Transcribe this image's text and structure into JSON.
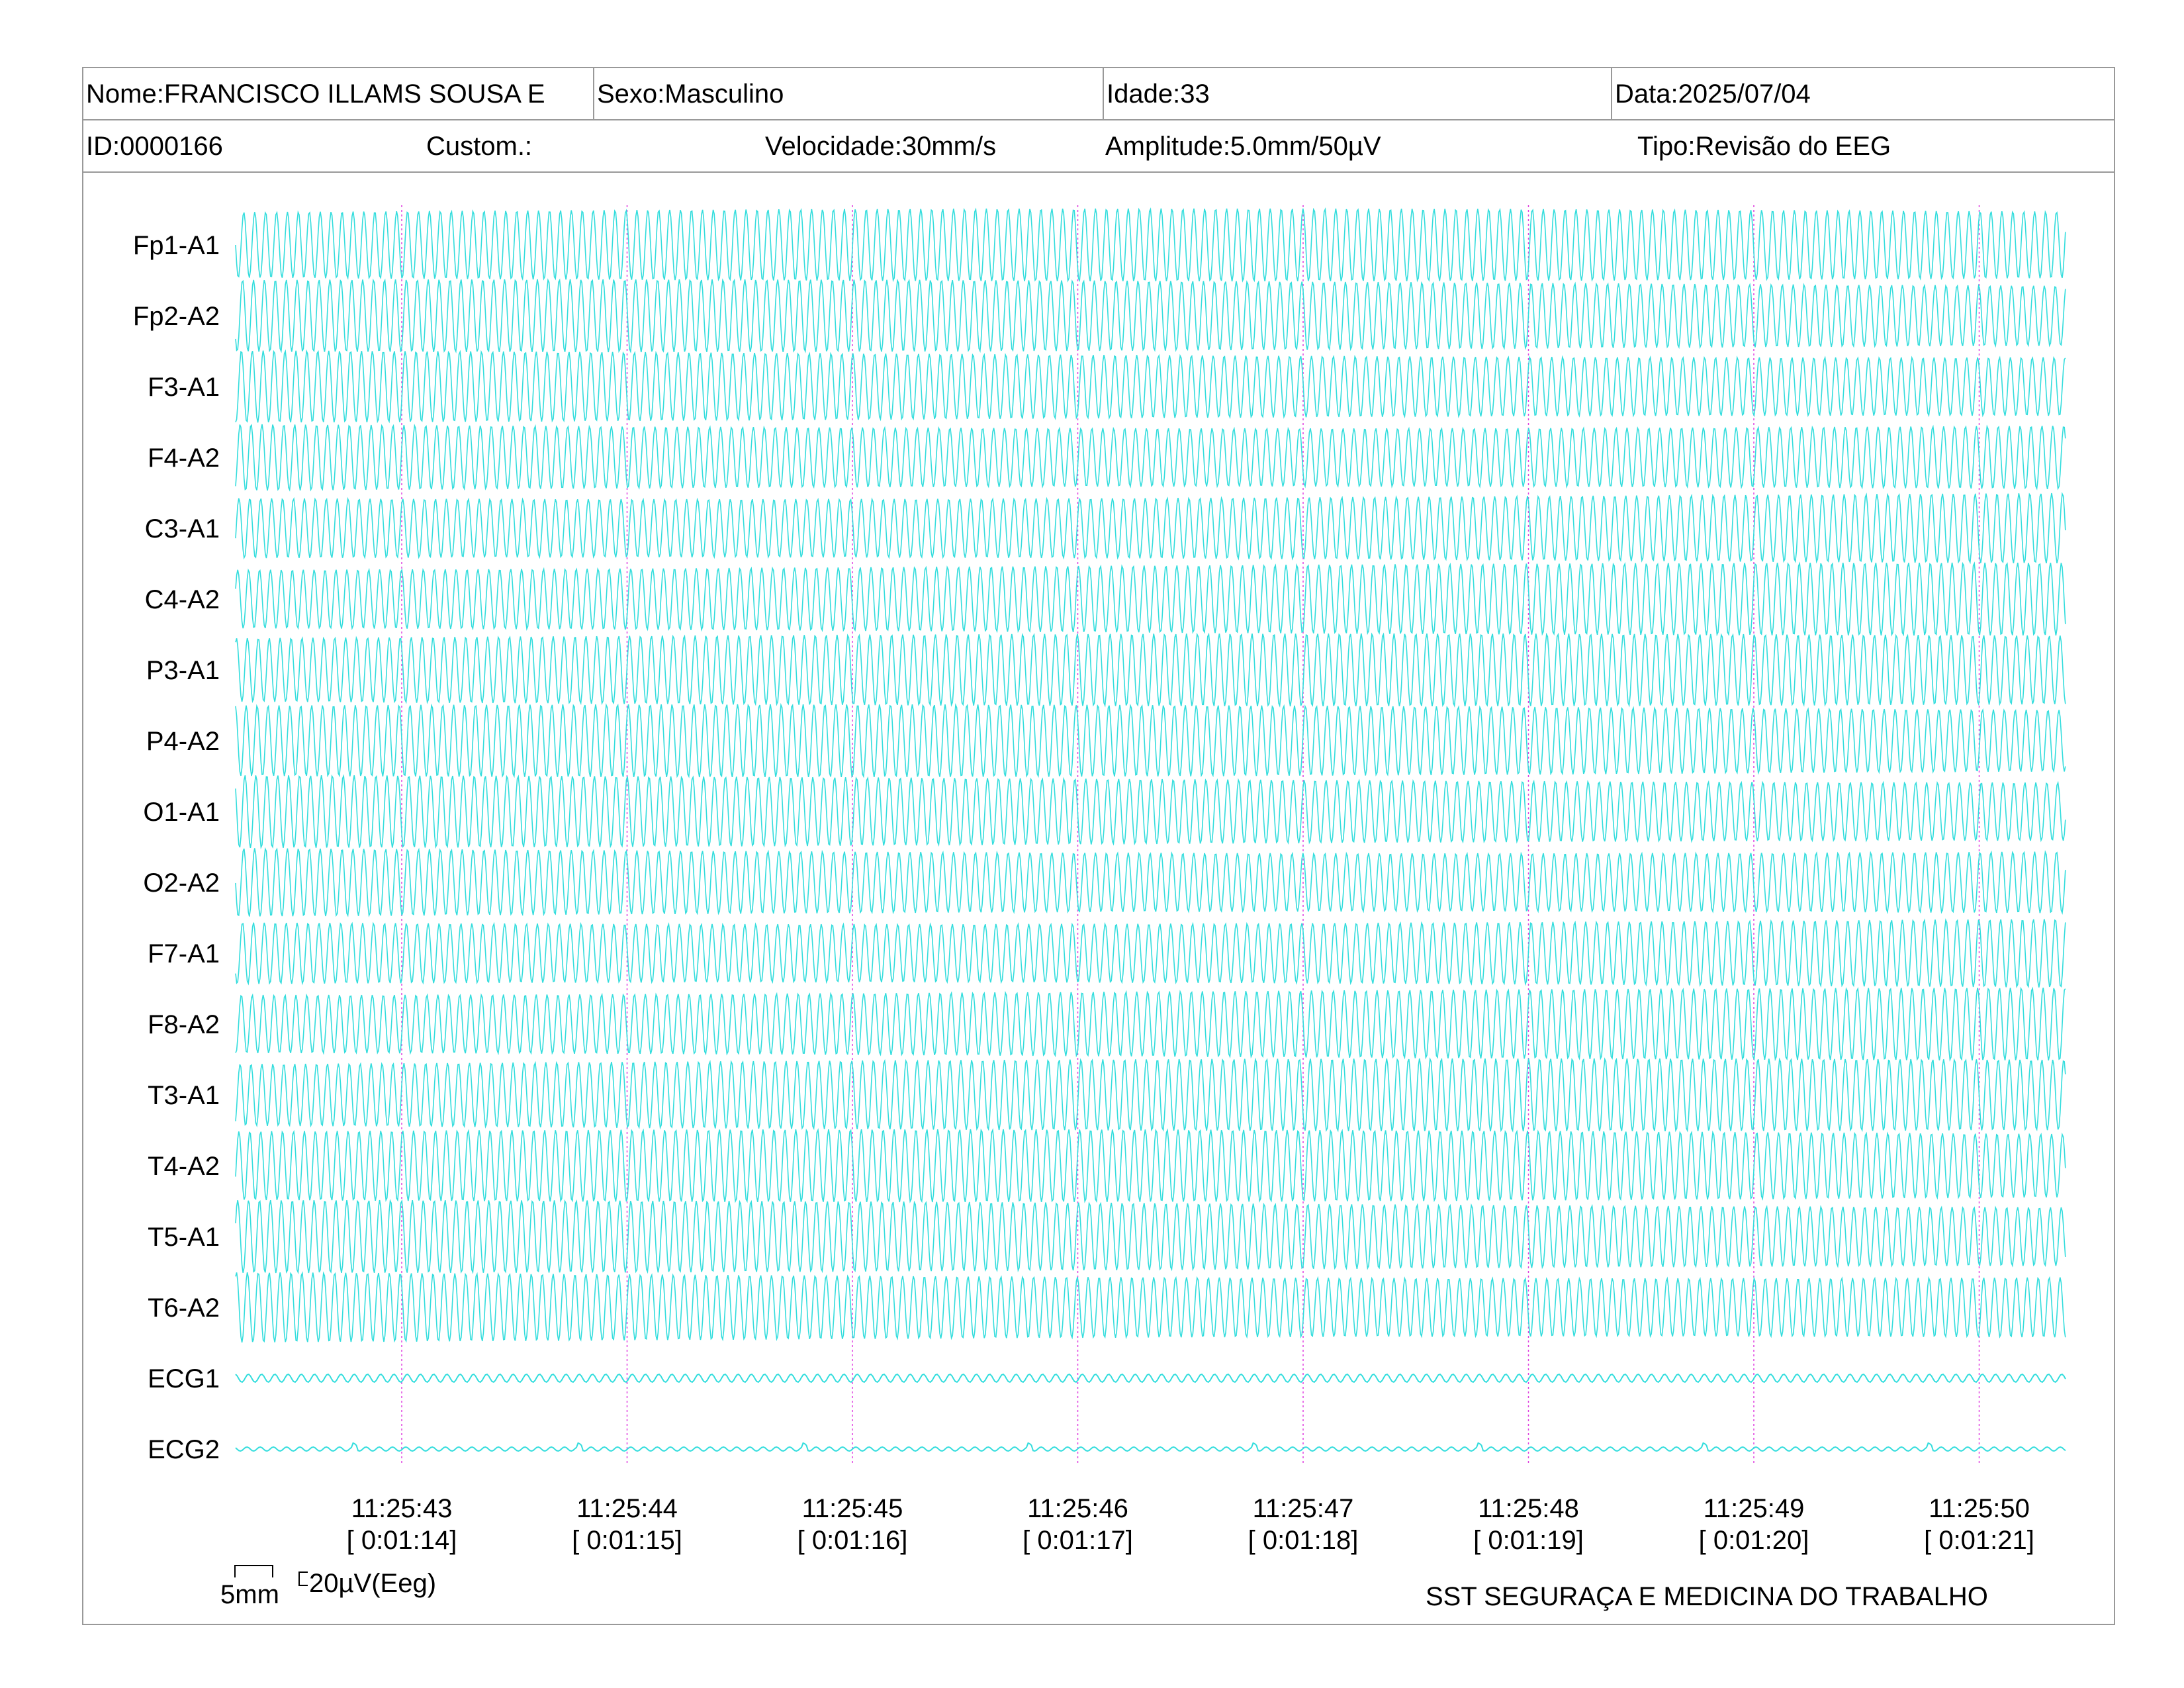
{
  "header": {
    "nome": "Nome:FRANCISCO ILLAMS SOUSA E",
    "sexo": "Sexo:Masculino",
    "idade": "Idade:33",
    "data": "Data:2025/07/04",
    "id": "ID:0000166",
    "custom": "Custom.:",
    "velocidade": "Velocidade:30mm/s",
    "amplitude": "Amplitude:5.0mm/50µV",
    "tipo": "Tipo:Revisão do EEG"
  },
  "colors": {
    "trace": "#33dddd",
    "marker": "#e040e0",
    "border": "#999999"
  },
  "chart_data": {
    "type": "line",
    "channels": [
      "Fp1-A1",
      "Fp2-A2",
      "F3-A1",
      "F4-A2",
      "C3-A1",
      "C4-A2",
      "P3-A1",
      "P4-A2",
      "O1-A1",
      "O2-A2",
      "F7-A1",
      "F8-A2",
      "T3-A1",
      "T4-A2",
      "T5-A1",
      "T6-A2",
      "ECG1",
      "ECG2"
    ],
    "time_markers": [
      {
        "clock": "11:25:43",
        "elapsed": "[ 0:01:14]"
      },
      {
        "clock": "11:25:44",
        "elapsed": "[ 0:01:15]"
      },
      {
        "clock": "11:25:45",
        "elapsed": "[ 0:01:16]"
      },
      {
        "clock": "11:25:46",
        "elapsed": "[ 0:01:17]"
      },
      {
        "clock": "11:25:47",
        "elapsed": "[ 0:01:18]"
      },
      {
        "clock": "11:25:48",
        "elapsed": "[ 0:01:19]"
      },
      {
        "clock": "11:25:49",
        "elapsed": "[ 0:01:20]"
      },
      {
        "clock": "11:25:50",
        "elapsed": "[ 0:01:21]"
      }
    ]
  },
  "scale": {
    "time_label": "5mm",
    "amp_label": "20µV(Eeg)"
  },
  "footer": {
    "company": "SST SEGURAÇA E MEDICINA DO TRABALHO"
  }
}
